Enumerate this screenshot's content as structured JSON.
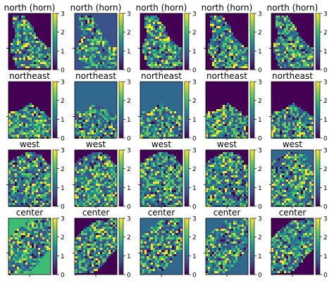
{
  "figure": {
    "background": "#ffffff",
    "colormap": "viridis",
    "colormap_stops": [
      "#440154",
      "#3b528b",
      "#21918c",
      "#5ec962",
      "#fde725"
    ]
  },
  "chart_data": {
    "type": "heatmap",
    "layout": "4 rows x 5 columns of map panels, each with its own colorbar",
    "colorbar": {
      "min": 0,
      "max": 3,
      "ticks": [
        "0",
        "1",
        "2",
        "3"
      ]
    },
    "rows": [
      {
        "title": "north (horn)",
        "panel_count": 5,
        "shape": "horn-shaped land region on dark background"
      },
      {
        "title": "northeast",
        "panel_count": 5,
        "shape": "coastal region in lower half"
      },
      {
        "title": "west",
        "panel_count": 5,
        "shape": "rounded landmass with dark top corners"
      },
      {
        "title": "center",
        "panel_count": 5,
        "shape": "diagonal land band across panel"
      }
    ]
  }
}
